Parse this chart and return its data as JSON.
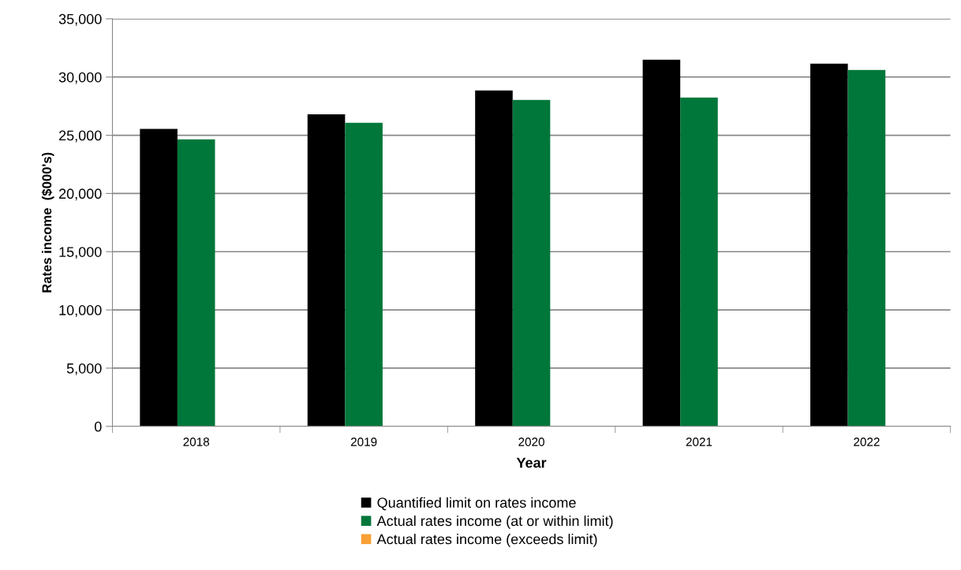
{
  "chart_data": {
    "type": "bar",
    "xlabel": "Year",
    "ylabel": "Rates income  ($000's)",
    "categories": [
      "2018",
      "2019",
      "2020",
      "2021",
      "2022"
    ],
    "series": [
      {
        "name": "Quantified limit on rates income",
        "color": "#000000",
        "values": [
          25550,
          26800,
          28850,
          31480,
          31150
        ]
      },
      {
        "name": "Actual rates income (at or within limit)",
        "color": "#00773a",
        "values": [
          24650,
          26070,
          28030,
          28230,
          30600
        ]
      },
      {
        "name": "Actual rates income (exceeds limit)",
        "color": "#f7a035",
        "values": [
          null,
          null,
          null,
          null,
          null
        ]
      }
    ],
    "ylim": [
      0,
      35000
    ],
    "yticks": [
      {
        "value": 0,
        "label": "0"
      },
      {
        "value": 5000,
        "label": "5,000"
      },
      {
        "value": 10000,
        "label": "10,000"
      },
      {
        "value": 15000,
        "label": "15,000"
      },
      {
        "value": 20000,
        "label": "20,000"
      },
      {
        "value": 25000,
        "label": "25,000"
      },
      {
        "value": 30000,
        "label": "30,000"
      },
      {
        "value": 35000,
        "label": "35,000"
      }
    ],
    "grid": "y",
    "legend": "bottom"
  }
}
